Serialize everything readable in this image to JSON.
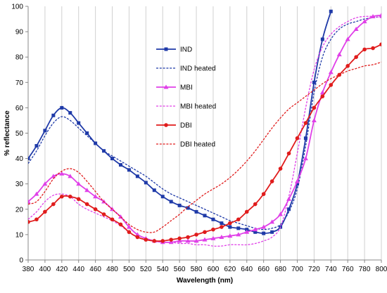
{
  "chart_data": {
    "type": "line",
    "xlabel": "Wavelength (nm)",
    "ylabel": "% reflectance",
    "xlim": [
      380,
      800
    ],
    "ylim": [
      0,
      100
    ],
    "xticks": [
      380,
      400,
      420,
      440,
      460,
      480,
      500,
      520,
      540,
      560,
      580,
      600,
      620,
      640,
      660,
      680,
      700,
      720,
      740,
      760,
      780,
      800
    ],
    "yticks": [
      0,
      10,
      20,
      30,
      40,
      50,
      60,
      70,
      80,
      90,
      100
    ],
    "grid": "vertical",
    "legend": "center-left",
    "series": [
      {
        "name": "IND",
        "color": "#1f3aa8",
        "style": "solid",
        "marker": "square",
        "x": [
          380,
          390,
          400,
          410,
          420,
          430,
          440,
          450,
          460,
          470,
          480,
          490,
          500,
          510,
          520,
          530,
          540,
          550,
          560,
          570,
          580,
          590,
          600,
          610,
          620,
          630,
          640,
          650,
          660,
          670,
          680,
          690,
          700,
          710,
          720,
          730,
          740
        ],
        "y": [
          40,
          45,
          51,
          57,
          60,
          58,
          54,
          50,
          46,
          43,
          40,
          37.5,
          35.5,
          33,
          30.5,
          27.5,
          25,
          23,
          21.5,
          20.5,
          19,
          17.5,
          16,
          14.5,
          13,
          12.5,
          12,
          11,
          10.5,
          11,
          13,
          20,
          30,
          48,
          70,
          87,
          98
        ]
      },
      {
        "name": "IND heated",
        "color": "#1f3aa8",
        "style": "dashed",
        "marker": "none",
        "x": [
          380,
          390,
          400,
          410,
          420,
          430,
          440,
          450,
          460,
          470,
          480,
          490,
          500,
          510,
          520,
          530,
          540,
          550,
          560,
          570,
          580,
          590,
          600,
          610,
          620,
          630,
          640,
          650,
          660,
          670,
          680,
          690,
          700,
          710,
          720,
          730,
          740,
          750,
          760,
          770,
          780,
          790,
          800
        ],
        "y": [
          38,
          43,
          49,
          54,
          56.5,
          55,
          52,
          49,
          46,
          43,
          41,
          39,
          37,
          35,
          33,
          30.5,
          28,
          26,
          24.5,
          23,
          21.5,
          20,
          18.5,
          17,
          15.5,
          14.5,
          13.5,
          12.5,
          12,
          12.5,
          14,
          19,
          28,
          45,
          66,
          80,
          87,
          91,
          93,
          94,
          95,
          95.5,
          96
        ]
      },
      {
        "name": "MBI",
        "color": "#e040e8",
        "style": "solid",
        "marker": "triangle",
        "x": [
          380,
          390,
          400,
          410,
          420,
          430,
          440,
          450,
          460,
          470,
          480,
          490,
          500,
          510,
          520,
          530,
          540,
          550,
          560,
          570,
          580,
          590,
          600,
          610,
          620,
          630,
          640,
          650,
          660,
          670,
          680,
          690,
          700,
          710,
          720,
          730,
          740,
          750,
          760,
          770,
          780,
          790,
          800
        ],
        "y": [
          23,
          26,
          30,
          33,
          34,
          33,
          30,
          27.5,
          25,
          23,
          20,
          17,
          13,
          10,
          8.5,
          7.5,
          7,
          7,
          7.5,
          7.5,
          7.5,
          8,
          8.5,
          9,
          9.5,
          10,
          11,
          12,
          13,
          15,
          18,
          24,
          31,
          40,
          55,
          66,
          74,
          81,
          87,
          91,
          94,
          96,
          96.5
        ]
      },
      {
        "name": "MBI heated",
        "color": "#e040e8",
        "style": "dashed",
        "marker": "none",
        "x": [
          380,
          390,
          400,
          410,
          420,
          430,
          440,
          450,
          460,
          470,
          480,
          490,
          500,
          510,
          520,
          530,
          540,
          550,
          560,
          570,
          580,
          590,
          600,
          610,
          620,
          630,
          640,
          650,
          660,
          670,
          680,
          690,
          700,
          710,
          720,
          730,
          740,
          750,
          760,
          770,
          780,
          790,
          800
        ],
        "y": [
          16,
          19,
          23,
          25.5,
          26,
          25,
          22,
          20,
          18.5,
          17,
          15.5,
          13.5,
          11,
          9,
          8,
          7.5,
          7,
          7,
          6.5,
          6.5,
          6,
          6,
          5.5,
          5.5,
          6,
          6,
          6,
          6.5,
          7.5,
          9,
          13,
          25,
          42,
          60,
          75,
          84,
          89,
          92,
          94,
          95.5,
          96,
          96,
          95.5
        ]
      },
      {
        "name": "DBI",
        "color": "#e01c1c",
        "style": "solid",
        "marker": "circle",
        "x": [
          380,
          390,
          400,
          410,
          420,
          430,
          440,
          450,
          460,
          470,
          480,
          490,
          500,
          510,
          520,
          530,
          540,
          550,
          560,
          570,
          580,
          590,
          600,
          610,
          620,
          630,
          640,
          650,
          660,
          670,
          680,
          690,
          700,
          710,
          720,
          730,
          740,
          750,
          760,
          770,
          780,
          790,
          800
        ],
        "y": [
          15,
          16,
          19,
          22,
          25,
          25,
          24,
          22,
          20,
          18,
          16,
          14,
          11,
          9,
          8,
          7.5,
          7.5,
          8,
          8.5,
          9,
          10,
          11,
          12,
          13,
          14.5,
          16,
          19,
          22,
          26,
          31,
          36,
          42,
          48,
          54,
          60,
          64.5,
          69,
          73,
          76.5,
          80,
          83,
          83.5,
          85
        ]
      },
      {
        "name": "DBI heated",
        "color": "#e01c1c",
        "style": "dashed",
        "marker": "none",
        "x": [
          380,
          390,
          400,
          410,
          420,
          430,
          440,
          450,
          460,
          470,
          480,
          490,
          500,
          510,
          520,
          530,
          540,
          550,
          560,
          570,
          580,
          590,
          600,
          610,
          620,
          630,
          640,
          650,
          660,
          670,
          680,
          690,
          700,
          710,
          720,
          730,
          740,
          750,
          760,
          770,
          780,
          790,
          800
        ],
        "y": [
          22,
          23,
          27,
          32,
          35,
          36,
          34.5,
          31,
          27,
          23,
          20,
          17,
          14,
          12,
          11,
          11,
          13,
          15.5,
          18,
          21,
          23.5,
          26,
          28,
          30,
          32.5,
          35.5,
          39,
          43,
          47.5,
          52,
          56,
          59.5,
          62,
          64.5,
          67,
          69.5,
          71.5,
          73,
          74.5,
          75.5,
          76.5,
          77,
          78
        ]
      }
    ]
  }
}
